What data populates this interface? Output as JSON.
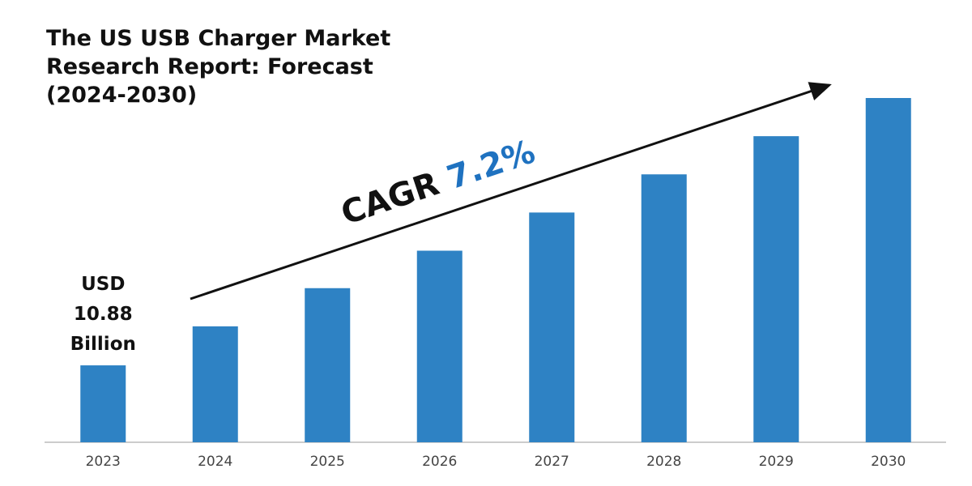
{
  "chart_data": {
    "type": "bar",
    "title": "The US USB Charger Market Research Report: Forecast (2024-2030)",
    "categories": [
      "2023",
      "2024",
      "2025",
      "2026",
      "2027",
      "2028",
      "2029",
      "2030"
    ],
    "values": [
      10.88,
      16.4,
      21.8,
      27.1,
      32.5,
      37.9,
      43.3,
      48.7
    ],
    "value_labels": [
      "USD 10.88 Billion",
      null,
      null,
      null,
      null,
      null,
      null,
      null
    ],
    "color": "#2e82c4",
    "annotation": {
      "text": "CAGR",
      "value": "7.2%",
      "value_color": "#1f72c0"
    }
  }
}
